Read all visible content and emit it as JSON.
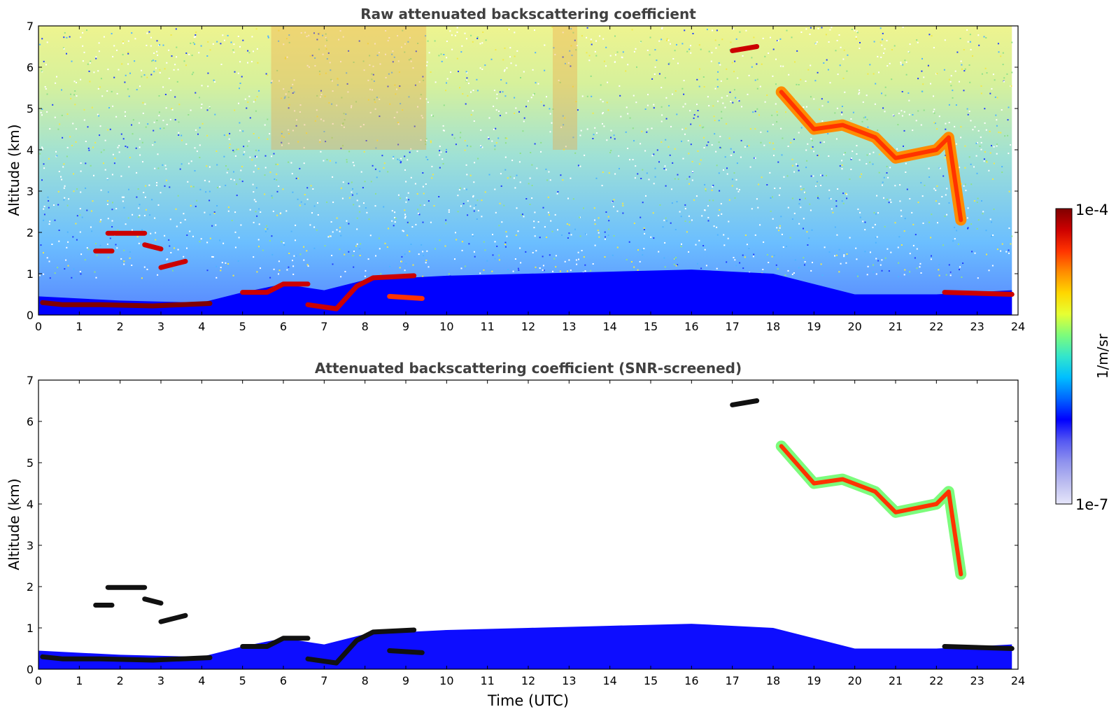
{
  "chart_data": [
    {
      "type": "heatmap",
      "title": "Raw attenuated backscattering coefficient",
      "xlabel": "",
      "ylabel": "Altitude (km)",
      "xlim": [
        0,
        24
      ],
      "ylim": [
        0,
        7
      ],
      "xticks": [
        "0",
        "1",
        "2",
        "3",
        "4",
        "5",
        "6",
        "7",
        "8",
        "9",
        "10",
        "11",
        "12",
        "13",
        "14",
        "15",
        "16",
        "17",
        "18",
        "19",
        "20",
        "21",
        "22",
        "23",
        "24"
      ],
      "yticks": [
        "0",
        "1",
        "2",
        "3",
        "4",
        "5",
        "6",
        "7"
      ],
      "grid": false,
      "data_end_time": 23.85,
      "features": [
        {
          "kind": "boundary_layer",
          "points": [
            [
              0,
              0.45
            ],
            [
              2,
              0.35
            ],
            [
              4,
              0.3
            ],
            [
              5,
              0.55
            ],
            [
              6,
              0.75
            ],
            [
              7,
              0.6
            ],
            [
              8,
              0.85
            ],
            [
              10,
              0.95
            ],
            [
              12,
              1.0
            ],
            [
              14,
              1.05
            ],
            [
              16,
              1.1
            ],
            [
              18,
              1.0
            ],
            [
              20,
              0.5
            ],
            [
              22,
              0.5
            ],
            [
              23.85,
              0.6
            ]
          ]
        },
        {
          "kind": "cloud_layer",
          "points": [
            [
              0.1,
              0.3
            ],
            [
              0.6,
              0.25
            ],
            [
              1.5,
              0.25
            ],
            [
              2.8,
              0.22
            ],
            [
              4.2,
              0.28
            ]
          ],
          "level": 0.98
        },
        {
          "kind": "cloud_layer",
          "points": [
            [
              1.4,
              1.55
            ],
            [
              1.8,
              1.55
            ]
          ],
          "level": 0.95
        },
        {
          "kind": "cloud_layer",
          "points": [
            [
              1.7,
              1.98
            ],
            [
              2.6,
              1.98
            ]
          ],
          "level": 0.95
        },
        {
          "kind": "cloud_layer",
          "points": [
            [
              2.6,
              1.7
            ],
            [
              3.0,
              1.6
            ]
          ],
          "level": 0.9
        },
        {
          "kind": "cloud_layer",
          "points": [
            [
              3.0,
              1.15
            ],
            [
              3.6,
              1.3
            ]
          ],
          "level": 0.9
        },
        {
          "kind": "cloud_layer",
          "points": [
            [
              5.0,
              0.55
            ],
            [
              5.6,
              0.55
            ],
            [
              6.0,
              0.75
            ],
            [
              6.6,
              0.75
            ]
          ],
          "level": 0.95
        },
        {
          "kind": "cloud_layer",
          "points": [
            [
              6.6,
              0.25
            ],
            [
              7.3,
              0.15
            ],
            [
              7.8,
              0.7
            ],
            [
              8.2,
              0.9
            ],
            [
              9.2,
              0.95
            ]
          ],
          "level": 0.95
        },
        {
          "kind": "cloud_layer",
          "points": [
            [
              8.6,
              0.45
            ],
            [
              9.4,
              0.4
            ]
          ],
          "level": 0.85
        },
        {
          "kind": "cloud_layer",
          "points": [
            [
              22.2,
              0.55
            ],
            [
              23.85,
              0.5
            ]
          ],
          "level": 0.95
        },
        {
          "kind": "cirrus",
          "points": [
            [
              18.2,
              5.4
            ],
            [
              19.0,
              4.5
            ],
            [
              19.7,
              4.6
            ],
            [
              20.5,
              4.3
            ],
            [
              21.0,
              3.8
            ],
            [
              22.0,
              4.0
            ],
            [
              22.3,
              4.3
            ],
            [
              22.6,
              2.3
            ]
          ],
          "level": 0.75
        },
        {
          "kind": "cirrus_top",
          "points": [
            [
              17.0,
              6.4
            ],
            [
              17.6,
              6.5
            ]
          ],
          "level": 0.95
        }
      ]
    },
    {
      "type": "heatmap",
      "title": "Attenuated backscattering coefficient (SNR-screened)",
      "xlabel": "Time (UTC)",
      "ylabel": "Altitude (km)",
      "xlim": [
        0,
        24
      ],
      "ylim": [
        0,
        7
      ],
      "xticks": [
        "0",
        "1",
        "2",
        "3",
        "4",
        "5",
        "6",
        "7",
        "8",
        "9",
        "10",
        "11",
        "12",
        "13",
        "14",
        "15",
        "16",
        "17",
        "18",
        "19",
        "20",
        "21",
        "22",
        "23",
        "24"
      ],
      "yticks": [
        "0",
        "1",
        "2",
        "3",
        "4",
        "5",
        "6",
        "7"
      ],
      "grid": false,
      "data_end_time": 23.85,
      "features": "same as raw panel with low-SNR pixels removed"
    }
  ],
  "colorbar": {
    "label": "1/m/sr",
    "min_label": "1e-7",
    "max_label": "1e-4",
    "colors": [
      "#e6e6fa",
      "#bcbdf0",
      "#8f92ee",
      "#5558f2",
      "#0000ff",
      "#0066ff",
      "#00bfff",
      "#33e6cc",
      "#7cfc7c",
      "#e6ff33",
      "#ffd700",
      "#ff8c00",
      "#ff3300",
      "#cc0000",
      "#800000"
    ]
  }
}
